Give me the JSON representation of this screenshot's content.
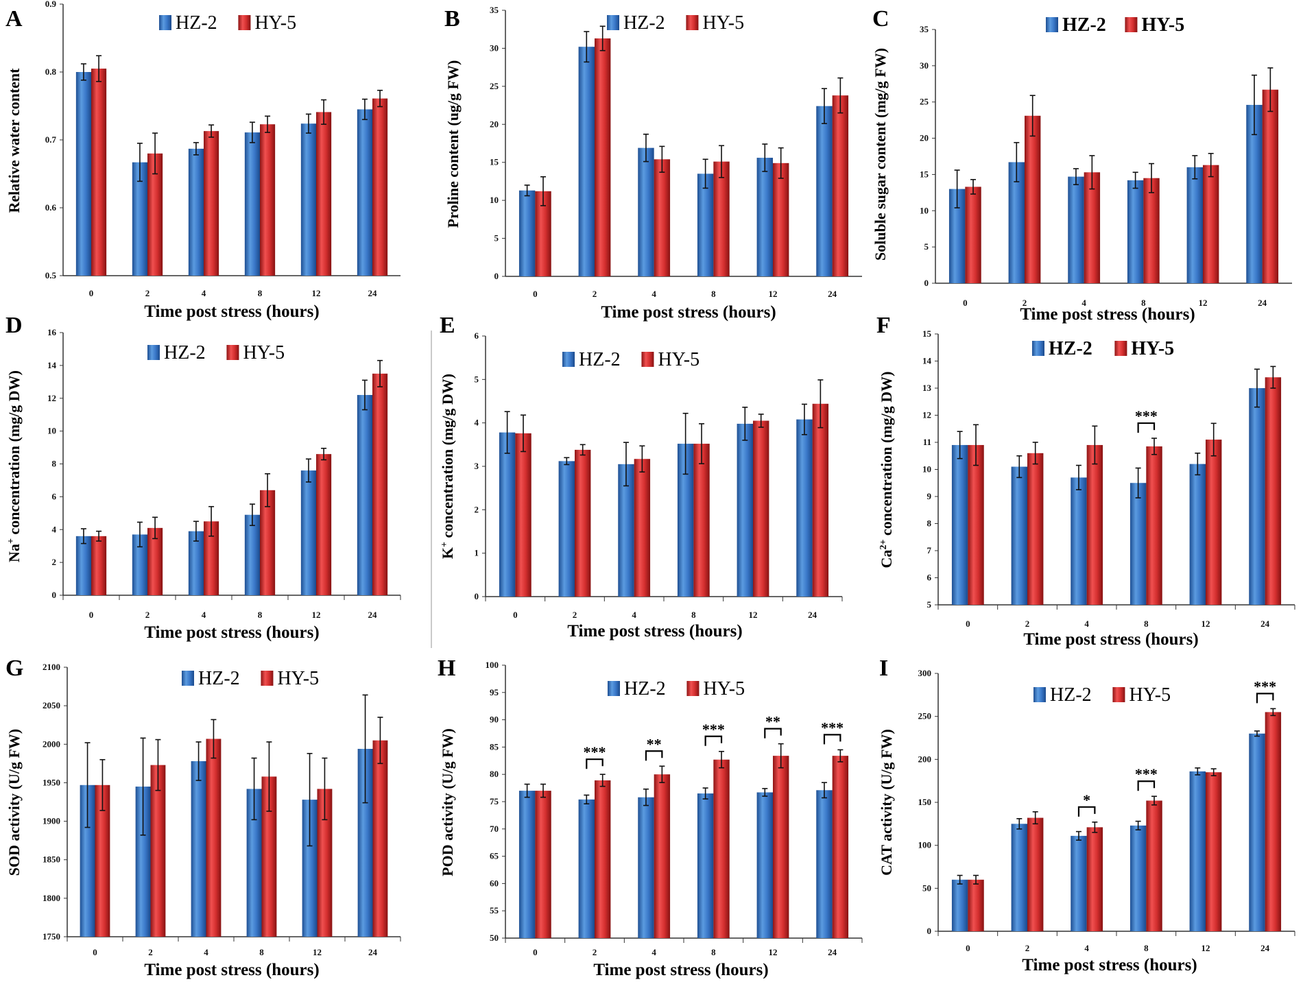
{
  "legend": {
    "series_a": "HZ-2",
    "series_b": "HY-5"
  },
  "colors": {
    "hz2": "#3a78c9",
    "hy5": "#d42f2f"
  },
  "chart_data": [
    {
      "panel": "A",
      "type": "bar",
      "categories": [
        "0",
        "2",
        "4",
        "8",
        "12",
        "24"
      ],
      "series": [
        {
          "name": "HZ-2",
          "values": [
            0.8,
            0.667,
            0.687,
            0.711,
            0.724,
            0.745
          ],
          "errors": [
            0.012,
            0.028,
            0.009,
            0.015,
            0.014,
            0.015
          ]
        },
        {
          "name": "HY-5",
          "values": [
            0.805,
            0.68,
            0.713,
            0.723,
            0.741,
            0.761
          ],
          "errors": [
            0.019,
            0.03,
            0.009,
            0.012,
            0.018,
            0.012
          ]
        }
      ],
      "ylim": [
        0.5,
        0.9
      ],
      "ytick_step": 0.1,
      "yticks": [
        "0.5",
        "0.6",
        "0.7",
        "0.8",
        "0.9"
      ],
      "ylabel": "Relative water content",
      "xlabel": "Time post stress (hours)",
      "significance": []
    },
    {
      "panel": "B",
      "type": "bar",
      "categories": [
        "0",
        "2",
        "4",
        "8",
        "12",
        "24"
      ],
      "series": [
        {
          "name": "HZ-2",
          "values": [
            11.3,
            30.2,
            16.9,
            13.5,
            15.6,
            22.4
          ],
          "errors": [
            0.7,
            2.0,
            1.8,
            1.9,
            1.8,
            2.3
          ]
        },
        {
          "name": "HY-5",
          "values": [
            11.2,
            31.3,
            15.4,
            15.1,
            14.9,
            23.8
          ],
          "errors": [
            1.9,
            1.6,
            1.7,
            2.1,
            2.0,
            2.3
          ]
        }
      ],
      "ylim": [
        0,
        35
      ],
      "ytick_step": 5,
      "yticks": [
        "0",
        "5",
        "10",
        "15",
        "20",
        "25",
        "30",
        "35"
      ],
      "ylabel": "Proline content (ug/g FW)",
      "xlabel": "Time post stress (hours)",
      "significance": []
    },
    {
      "panel": "C",
      "type": "bar",
      "categories": [
        "0",
        "2",
        "4",
        "8",
        "12",
        "24"
      ],
      "series": [
        {
          "name": "HZ-2",
          "values": [
            13.0,
            16.7,
            14.7,
            14.2,
            16.0,
            24.6
          ],
          "errors": [
            2.6,
            2.7,
            1.1,
            1.1,
            1.6,
            4.1
          ]
        },
        {
          "name": "HY-5",
          "values": [
            13.3,
            23.1,
            15.3,
            14.5,
            16.3,
            26.7
          ],
          "errors": [
            1.0,
            2.8,
            2.3,
            2.0,
            1.6,
            3.0
          ]
        }
      ],
      "ylim": [
        0,
        35
      ],
      "ytick_step": 5,
      "yticks": [
        "0",
        "5",
        "10",
        "15",
        "20",
        "25",
        "30",
        "35"
      ],
      "ylabel": "Soluble sugar content (mg/g FW)",
      "xlabel": "Time post stress (hours)",
      "significance": []
    },
    {
      "panel": "D",
      "type": "bar",
      "categories": [
        "0",
        "2",
        "4",
        "8",
        "12",
        "24"
      ],
      "series": [
        {
          "name": "HZ-2",
          "values": [
            3.6,
            3.7,
            3.9,
            4.9,
            7.6,
            12.2
          ],
          "errors": [
            0.45,
            0.75,
            0.6,
            0.65,
            0.7,
            0.9
          ]
        },
        {
          "name": "HY-5",
          "values": [
            3.6,
            4.1,
            4.5,
            6.4,
            8.6,
            13.5
          ],
          "errors": [
            0.3,
            0.65,
            0.9,
            1.0,
            0.35,
            0.8
          ]
        }
      ],
      "ylim": [
        0,
        16
      ],
      "ytick_step": 2,
      "yticks": [
        "0",
        "2",
        "4",
        "6",
        "8",
        "10",
        "12",
        "14",
        "16"
      ],
      "ylabel_main": "Na",
      "ylabel_sup": "+",
      "ylabel_rest": " concentration (mg/g DW)",
      "xlabel": "Time post stress (hours)",
      "significance": []
    },
    {
      "panel": "E",
      "type": "bar",
      "categories": [
        "0",
        "2",
        "4",
        "8",
        "12",
        "24"
      ],
      "series": [
        {
          "name": "HZ-2",
          "values": [
            3.78,
            3.12,
            3.05,
            3.52,
            3.98,
            4.08
          ],
          "errors": [
            0.48,
            0.08,
            0.5,
            0.7,
            0.38,
            0.35
          ]
        },
        {
          "name": "HY-5",
          "values": [
            3.76,
            3.38,
            3.17,
            3.52,
            4.05,
            4.44
          ],
          "errors": [
            0.42,
            0.12,
            0.3,
            0.46,
            0.15,
            0.55
          ]
        }
      ],
      "ylim": [
        0,
        6
      ],
      "ytick_step": 1,
      "yticks": [
        "0",
        "1",
        "2",
        "3",
        "4",
        "5",
        "6"
      ],
      "ylabel_main": "K",
      "ylabel_sup": "+",
      "ylabel_rest": " concentration (mg/g DW)",
      "xlabel": "Time post stress (hours)",
      "significance": []
    },
    {
      "panel": "F",
      "type": "bar",
      "categories": [
        "0",
        "2",
        "4",
        "8",
        "12",
        "24"
      ],
      "series": [
        {
          "name": "HZ-2",
          "values": [
            10.9,
            10.1,
            9.7,
            9.5,
            10.2,
            13.0
          ],
          "errors": [
            0.5,
            0.4,
            0.45,
            0.55,
            0.4,
            0.7
          ]
        },
        {
          "name": "HY-5",
          "values": [
            10.9,
            10.6,
            10.9,
            10.85,
            11.1,
            13.4
          ],
          "errors": [
            0.75,
            0.4,
            0.7,
            0.3,
            0.6,
            0.4
          ]
        }
      ],
      "ylim": [
        5,
        15
      ],
      "ytick_step": 1,
      "yticks": [
        "5",
        "6",
        "7",
        "8",
        "9",
        "10",
        "11",
        "12",
        "13",
        "14",
        "15"
      ],
      "ylabel_main": "Ca",
      "ylabel_sup": "2+",
      "ylabel_rest": " concentration (mg/g DW)",
      "xlabel": "Time post stress (hours)",
      "significance": [
        {
          "category": "8",
          "label": "***"
        }
      ]
    },
    {
      "panel": "G",
      "type": "bar",
      "categories": [
        "0",
        "2",
        "4",
        "8",
        "12",
        "24"
      ],
      "series": [
        {
          "name": "HZ-2",
          "values": [
            1947,
            1945,
            1978,
            1942,
            1928,
            1994
          ],
          "errors": [
            55,
            63,
            25,
            40,
            60,
            70
          ]
        },
        {
          "name": "HY-5",
          "values": [
            1947,
            1973,
            2007,
            1958,
            1942,
            2005
          ],
          "errors": [
            33,
            33,
            25,
            45,
            40,
            30
          ]
        }
      ],
      "ylim": [
        1750,
        2100
      ],
      "ytick_step": 50,
      "yticks": [
        "1750",
        "1800",
        "1850",
        "1900",
        "1950",
        "2000",
        "2050",
        "2100"
      ],
      "ylabel": "SOD activity (U/g FW)",
      "xlabel": "Time post stress (hours)",
      "significance": []
    },
    {
      "panel": "H",
      "type": "bar",
      "categories": [
        "0",
        "2",
        "4",
        "8",
        "12",
        "24"
      ],
      "series": [
        {
          "name": "HZ-2",
          "values": [
            77.0,
            75.4,
            75.8,
            76.5,
            76.7,
            77.1
          ],
          "errors": [
            1.2,
            0.8,
            1.5,
            1.0,
            0.7,
            1.4
          ]
        },
        {
          "name": "HY-5",
          "values": [
            77.0,
            78.9,
            80.0,
            82.7,
            83.4,
            83.4
          ],
          "errors": [
            1.2,
            1.1,
            1.5,
            1.5,
            2.2,
            1.1
          ]
        }
      ],
      "ylim": [
        50,
        100
      ],
      "ytick_step": 5,
      "yticks": [
        "50",
        "55",
        "60",
        "65",
        "70",
        "75",
        "80",
        "85",
        "90",
        "95",
        "100"
      ],
      "ylabel": "POD activity (U/g FW)",
      "xlabel": "Time post stress (hours)",
      "significance": [
        {
          "category": "2",
          "label": "***"
        },
        {
          "category": "4",
          "label": "**"
        },
        {
          "category": "8",
          "label": "***"
        },
        {
          "category": "12",
          "label": "**"
        },
        {
          "category": "24",
          "label": "***"
        }
      ]
    },
    {
      "panel": "I",
      "type": "bar",
      "categories": [
        "0",
        "2",
        "4",
        "8",
        "12",
        "24"
      ],
      "series": [
        {
          "name": "HZ-2",
          "values": [
            60,
            125,
            111,
            123,
            186,
            230
          ],
          "errors": [
            5,
            6,
            5,
            5,
            4,
            3
          ]
        },
        {
          "name": "HY-5",
          "values": [
            60,
            132,
            121,
            152,
            185,
            255
          ],
          "errors": [
            5,
            7,
            6,
            5,
            4,
            4
          ]
        }
      ],
      "ylim": [
        0,
        300
      ],
      "ytick_step": 50,
      "yticks": [
        "0",
        "50",
        "100",
        "150",
        "200",
        "250",
        "300"
      ],
      "ylabel": "CAT activity (U/g FW)",
      "xlabel": "Time post stress (hours)",
      "significance": [
        {
          "category": "4",
          "label": "*"
        },
        {
          "category": "8",
          "label": "***"
        },
        {
          "category": "24",
          "label": "***"
        }
      ]
    }
  ]
}
